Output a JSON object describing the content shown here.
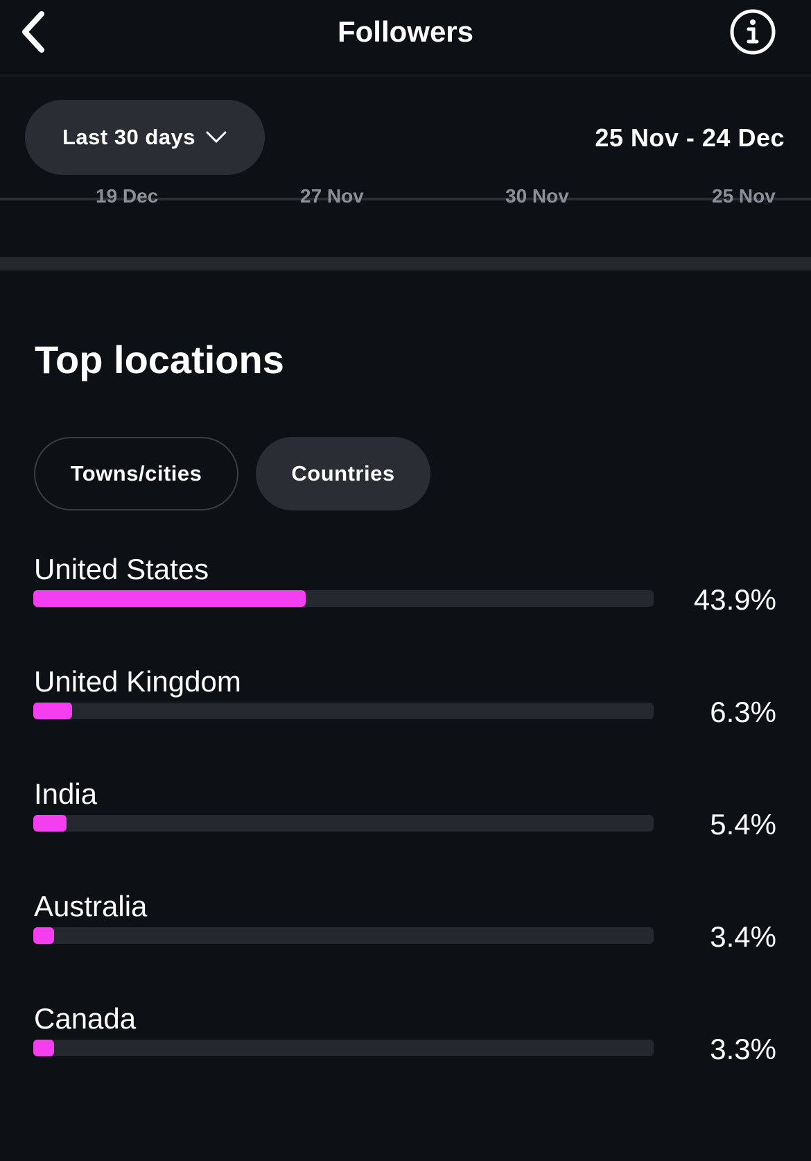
{
  "header": {
    "title": "Followers",
    "back_icon": "chevron-left-icon",
    "info_icon": "info-icon"
  },
  "filter": {
    "period": "Last 30 days",
    "date_range": "25 Nov - 24 Dec"
  },
  "chart_axis_ticks": [
    "19 Dec",
    "27 Nov",
    "30 Nov",
    "25 Nov"
  ],
  "top_locations": {
    "title": "Top locations",
    "tabs": [
      {
        "label": "Towns/cities",
        "selected": false
      },
      {
        "label": "Countries",
        "selected": true
      }
    ],
    "bar_color": "#f43ef0",
    "items": [
      {
        "name": "United States",
        "percent_label": "43.9%",
        "percent": 43.9
      },
      {
        "name": "United Kingdom",
        "percent_label": "6.3%",
        "percent": 6.3
      },
      {
        "name": "India",
        "percent_label": "5.4%",
        "percent": 5.4
      },
      {
        "name": "Australia",
        "percent_label": "3.4%",
        "percent": 3.4
      },
      {
        "name": "Canada",
        "percent_label": "3.3%",
        "percent": 3.3
      }
    ]
  }
}
